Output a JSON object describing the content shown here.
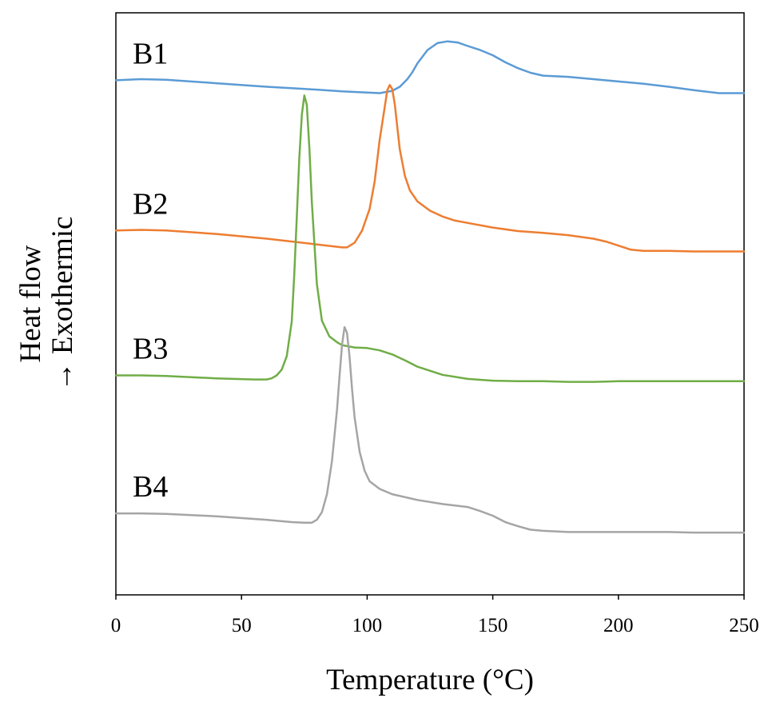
{
  "chart_data": {
    "type": "line",
    "xlabel": "Temperature (°C)",
    "ylabel_line1": "Heat flow",
    "ylabel_line2": "→ Exothermic",
    "xlim": [
      0,
      250
    ],
    "xticks": [
      0,
      50,
      100,
      150,
      200,
      250
    ],
    "ylim": [
      0,
      100
    ],
    "grid": false,
    "legend": "none",
    "series": [
      {
        "name": "B1",
        "color": "#5b9bd5",
        "x": [
          0,
          10,
          20,
          40,
          60,
          80,
          90,
          100,
          105,
          110,
          113,
          116,
          118,
          120,
          124,
          128,
          132,
          136,
          140,
          145,
          150,
          155,
          160,
          165,
          170,
          180,
          190,
          200,
          210,
          220,
          230,
          240,
          250
        ],
        "y": [
          88.4,
          88.6,
          88.5,
          87.9,
          87.3,
          86.8,
          86.5,
          86.3,
          86.2,
          86.6,
          87.3,
          88.6,
          89.8,
          91.3,
          93.6,
          94.8,
          95.1,
          94.9,
          94.3,
          93.6,
          92.7,
          91.5,
          90.5,
          89.7,
          89.2,
          89.0,
          88.6,
          88.2,
          87.8,
          87.3,
          86.7,
          86.2,
          86.2
        ]
      },
      {
        "name": "B2",
        "color": "#ed7d31",
        "x": [
          0,
          10,
          20,
          40,
          60,
          80,
          90,
          92,
          95,
          98,
          101,
          103,
          105,
          107,
          108,
          109,
          110,
          111,
          112,
          113,
          115,
          117,
          120,
          125,
          130,
          135,
          140,
          150,
          160,
          170,
          180,
          190,
          195,
          200,
          205,
          210,
          220,
          230,
          240,
          250
        ],
        "y": [
          62.6,
          62.7,
          62.6,
          62.0,
          61.2,
          60.2,
          59.7,
          59.7,
          60.5,
          62.6,
          66.3,
          71.0,
          78.2,
          83.8,
          86.7,
          87.6,
          86.9,
          84.3,
          80.4,
          76.5,
          72.0,
          69.5,
          67.6,
          66.0,
          65.0,
          64.3,
          63.9,
          63.1,
          62.5,
          62.2,
          61.8,
          61.2,
          60.7,
          60.0,
          59.3,
          59.1,
          59.1,
          59.0,
          59.0,
          59.0
        ]
      },
      {
        "name": "B3",
        "color": "#70ad47",
        "x": [
          0,
          10,
          20,
          40,
          55,
          60,
          62,
          64,
          66,
          68,
          70,
          71,
          72,
          73,
          74,
          75,
          76,
          77,
          78,
          80,
          82,
          85,
          88,
          90,
          95,
          100,
          105,
          110,
          115,
          120,
          125,
          130,
          140,
          150,
          160,
          170,
          180,
          190,
          200,
          210,
          220,
          230,
          240,
          250
        ],
        "y": [
          37.7,
          37.7,
          37.6,
          37.2,
          37.0,
          37.0,
          37.2,
          37.7,
          38.7,
          41.0,
          47.0,
          55.0,
          65.0,
          75.0,
          82.5,
          85.8,
          84.2,
          76.8,
          67.5,
          53.4,
          47.1,
          44.4,
          43.4,
          42.9,
          42.5,
          42.4,
          42.0,
          41.3,
          40.3,
          39.2,
          38.5,
          37.8,
          37.1,
          36.8,
          36.7,
          36.7,
          36.6,
          36.6,
          36.7,
          36.7,
          36.7,
          36.7,
          36.7,
          36.7
        ]
      },
      {
        "name": "B4",
        "color": "#a5a5a5",
        "x": [
          0,
          10,
          20,
          40,
          60,
          70,
          75,
          78,
          80,
          82,
          84,
          86,
          88,
          89,
          90,
          91,
          92,
          93,
          94,
          95,
          97,
          99,
          101,
          105,
          110,
          120,
          130,
          140,
          145,
          150,
          155,
          160,
          165,
          170,
          180,
          190,
          200,
          210,
          220,
          230,
          240,
          250
        ],
        "y": [
          14.0,
          14.0,
          13.9,
          13.5,
          12.9,
          12.5,
          12.4,
          12.4,
          12.9,
          14.2,
          17.3,
          23.0,
          31.8,
          37.5,
          43.0,
          46.0,
          45.0,
          40.9,
          35.4,
          30.5,
          24.6,
          21.3,
          19.5,
          18.2,
          17.3,
          16.3,
          15.6,
          15.1,
          14.4,
          13.6,
          12.5,
          11.8,
          11.2,
          11.0,
          10.8,
          10.8,
          10.8,
          10.8,
          10.8,
          10.7,
          10.7,
          10.7
        ]
      }
    ]
  }
}
